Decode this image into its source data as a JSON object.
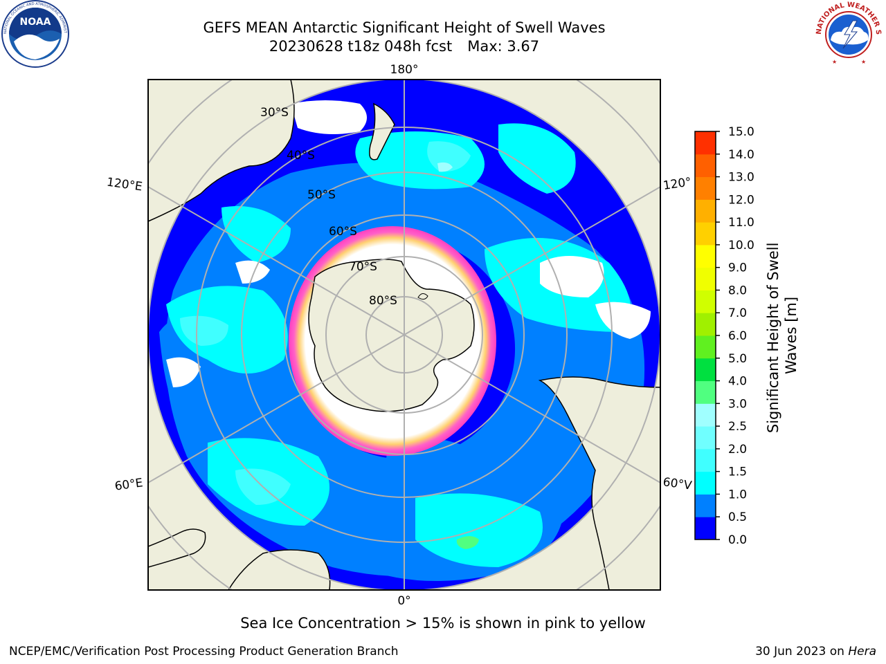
{
  "header": {
    "title_line1": "GEFS MEAN Antarctic Significant Height of Swell Waves",
    "title_cycle": "20230628 t18z 048h fcst",
    "title_max": "Max: 3.67"
  },
  "logos": {
    "left": {
      "icon": "noaa-logo",
      "text": "NOAA",
      "ring_text": "NATIONAL OCEANIC AND ATMOSPHERIC ADMINISTRATION · U.S. DEPARTMENT OF COMMERCE"
    },
    "right": {
      "icon": "nws-logo",
      "ring_text": "NATIONAL WEATHER SERVICE"
    }
  },
  "map": {
    "projection": "south-polar-stereographic",
    "longitude_labels": {
      "top": "180°",
      "bottom": "0°",
      "upper_left": "120°E",
      "lower_left": "60°E",
      "upper_right": "120°",
      "lower_right": "60°V"
    },
    "latitude_labels": [
      "30°S",
      "40°S",
      "50°S",
      "60°S",
      "70°S",
      "80°S"
    ],
    "colors": {
      "land": "#eeeedc",
      "open_ocean_low": "#0000ff",
      "swell_0_5": "#0080ff",
      "swell_1_0": "#00ffff",
      "swell_1_5": "#40ffff",
      "swell_2_0": "#a0ffff",
      "swell_3_0": "#50ff80",
      "sea_ice_edge": "#ff40c0",
      "sea_ice_inner": "#ffb030",
      "grid": "#b0b0b0"
    }
  },
  "colorbar": {
    "label": "Significant Height of Swell Waves [m]",
    "ticks": [
      "0.0",
      "0.5",
      "1.0",
      "1.5",
      "2.0",
      "2.5",
      "3.0",
      "4.0",
      "5.0",
      "6.0",
      "7.0",
      "8.0",
      "9.0",
      "10.0",
      "11.0",
      "12.0",
      "13.0",
      "14.0",
      "15.0"
    ],
    "colors": [
      "#0000ff",
      "#0080ff",
      "#00ffff",
      "#40ffff",
      "#70ffff",
      "#a0ffff",
      "#50ff80",
      "#00e040",
      "#60f020",
      "#a0f000",
      "#d0ff00",
      "#f0ff00",
      "#ffff00",
      "#ffd000",
      "#ffb000",
      "#ff8000",
      "#ff6000",
      "#ff3000",
      "#ff0000"
    ]
  },
  "footer": {
    "note": "Sea Ice Concentration > 15% is shown in pink to yellow",
    "credit": "NCEP/EMC/Verification Post Processing Product Generation Branch",
    "date": "30 Jun 2023 on",
    "machine": "Hera"
  }
}
